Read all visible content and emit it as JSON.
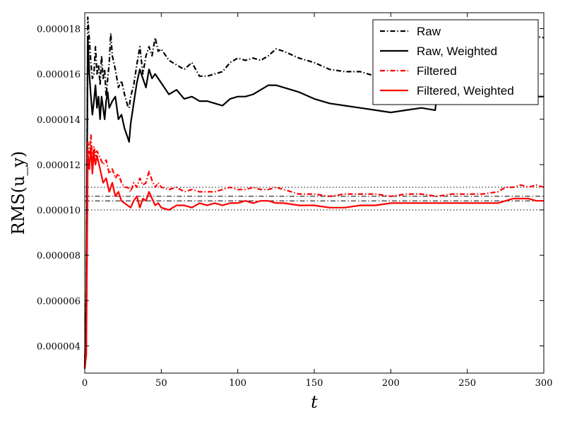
{
  "chart_data": {
    "type": "line",
    "title": "",
    "xlabel": "t",
    "ylabel": "RMS(u_y)",
    "xlim": [
      0,
      300
    ],
    "ylim": [
      1.87e-05,
      2.8e-06
    ],
    "y_axis_inverted": true,
    "grid": false,
    "legend_placement": "top-right",
    "x_ticks": [
      0,
      50,
      100,
      150,
      200,
      250,
      300
    ],
    "x_tick_labels": [
      "0",
      "50",
      "100",
      "150",
      "200",
      "250",
      "300"
    ],
    "y_ticks": [
      4e-06,
      6e-06,
      8e-06,
      1e-05,
      1.2e-05,
      1.4e-05,
      1.6e-05,
      1.8e-05
    ],
    "y_tick_labels": [
      "0.000004",
      "0.000006",
      "0.000008",
      "0.000010",
      "0.000012",
      "0.000014",
      "0.000016",
      "0.000018"
    ],
    "reference_lines": [
      {
        "y": 1e-05,
        "style": "dotted",
        "color": "#000000"
      },
      {
        "y": 1.04e-05,
        "style": "dashdot",
        "color": "#000000"
      },
      {
        "y": 1.06e-05,
        "style": "dashdot",
        "color": "#000000"
      },
      {
        "y": 1.1e-05,
        "style": "dotted",
        "color": "#000000"
      }
    ],
    "series": [
      {
        "name": "Raw",
        "color": "#000000",
        "style": "dashdot",
        "x": [
          0,
          1,
          2,
          3,
          4,
          5,
          6,
          7,
          8,
          9,
          10,
          11,
          12,
          13,
          14,
          15,
          16,
          17,
          18,
          20,
          22,
          24,
          26,
          28,
          29,
          30,
          32,
          34,
          36,
          38,
          40,
          42,
          44,
          46,
          48,
          50,
          55,
          60,
          65,
          70,
          75,
          80,
          85,
          90,
          95,
          100,
          105,
          110,
          115,
          120,
          125,
          130,
          140,
          150,
          160,
          170,
          180,
          190,
          200,
          210,
          220,
          229,
          230,
          232,
          240,
          250,
          260,
          270,
          280,
          290,
          300
        ],
        "y": [
          3e-06,
          6.5e-06,
          1.85e-05,
          1.75e-05,
          1.65e-05,
          1.58e-05,
          1.6e-05,
          1.72e-05,
          1.6e-05,
          1.64e-05,
          1.55e-05,
          1.68e-05,
          1.58e-05,
          1.62e-05,
          1.5e-05,
          1.58e-05,
          1.65e-05,
          1.78e-05,
          1.68e-05,
          1.62e-05,
          1.54e-05,
          1.57e-05,
          1.51e-05,
          1.46e-05,
          1.45e-05,
          1.5e-05,
          1.55e-05,
          1.64e-05,
          1.72e-05,
          1.6e-05,
          1.68e-05,
          1.72e-05,
          1.68e-05,
          1.76e-05,
          1.7e-05,
          1.71e-05,
          1.66e-05,
          1.64e-05,
          1.62e-05,
          1.65e-05,
          1.59e-05,
          1.59e-05,
          1.6e-05,
          1.61e-05,
          1.65e-05,
          1.67e-05,
          1.66e-05,
          1.67e-05,
          1.66e-05,
          1.68e-05,
          1.71e-05,
          1.7e-05,
          1.67e-05,
          1.65e-05,
          1.62e-05,
          1.61e-05,
          1.61e-05,
          1.59e-05,
          1.58e-05,
          1.59e-05,
          1.59e-05,
          1.59e-05,
          1.76e-05,
          1.77e-05,
          1.77e-05,
          1.76e-05,
          1.77e-05,
          1.76e-05,
          1.77e-05,
          1.77e-05,
          1.76e-05
        ]
      },
      {
        "name": "Raw, Weighted",
        "color": "#000000",
        "style": "solid",
        "x": [
          0,
          1,
          2,
          3,
          4,
          5,
          6,
          7,
          8,
          9,
          10,
          11,
          12,
          13,
          14,
          15,
          16,
          18,
          20,
          22,
          24,
          26,
          28,
          29,
          30,
          32,
          34,
          36,
          38,
          40,
          42,
          44,
          46,
          48,
          50,
          55,
          60,
          65,
          70,
          75,
          80,
          85,
          90,
          95,
          100,
          105,
          110,
          115,
          120,
          125,
          130,
          140,
          150,
          160,
          170,
          180,
          190,
          200,
          210,
          220,
          229,
          230,
          232,
          240,
          250,
          260,
          270,
          280,
          290,
          300
        ],
        "y": [
          3e-06,
          6e-06,
          1.76e-05,
          1.6e-05,
          1.5e-05,
          1.42e-05,
          1.48e-05,
          1.55e-05,
          1.45e-05,
          1.5e-05,
          1.4e-05,
          1.5e-05,
          1.45e-05,
          1.4e-05,
          1.48e-05,
          1.52e-05,
          1.45e-05,
          1.48e-05,
          1.5e-05,
          1.4e-05,
          1.42e-05,
          1.36e-05,
          1.32e-05,
          1.3e-05,
          1.38e-05,
          1.47e-05,
          1.56e-05,
          1.62e-05,
          1.58e-05,
          1.54e-05,
          1.62e-05,
          1.58e-05,
          1.6e-05,
          1.58e-05,
          1.56e-05,
          1.51e-05,
          1.53e-05,
          1.49e-05,
          1.5e-05,
          1.48e-05,
          1.48e-05,
          1.47e-05,
          1.46e-05,
          1.49e-05,
          1.5e-05,
          1.5e-05,
          1.51e-05,
          1.53e-05,
          1.55e-05,
          1.55e-05,
          1.54e-05,
          1.52e-05,
          1.49e-05,
          1.47e-05,
          1.46e-05,
          1.45e-05,
          1.44e-05,
          1.43e-05,
          1.44e-05,
          1.45e-05,
          1.44e-05,
          1.5e-05,
          1.5e-05,
          1.49e-05,
          1.49e-05,
          1.49e-05,
          1.5e-05,
          1.5e-05,
          1.5e-05,
          1.5e-05
        ]
      },
      {
        "name": "Filtered",
        "color": "#ff0000",
        "style": "dashdot",
        "x": [
          0,
          1,
          2,
          3,
          4,
          5,
          6,
          7,
          8,
          10,
          12,
          14,
          16,
          18,
          20,
          22,
          24,
          26,
          28,
          30,
          32,
          34,
          36,
          38,
          40,
          42,
          44,
          46,
          48,
          50,
          55,
          60,
          65,
          70,
          75,
          80,
          85,
          90,
          95,
          100,
          105,
          110,
          115,
          120,
          125,
          130,
          140,
          150,
          160,
          170,
          180,
          190,
          200,
          210,
          220,
          230,
          240,
          250,
          260,
          270,
          275,
          280,
          285,
          290,
          295,
          300
        ],
        "y": [
          3e-06,
          4.2e-06,
          1.3e-05,
          1.25e-05,
          1.33e-05,
          1.22e-05,
          1.28e-05,
          1.24e-05,
          1.26e-05,
          1.23e-05,
          1.2e-05,
          1.22e-05,
          1.16e-05,
          1.18e-05,
          1.14e-05,
          1.16e-05,
          1.12e-05,
          1.1e-05,
          1.1e-05,
          1.08e-05,
          1.12e-05,
          1.1e-05,
          1.14e-05,
          1.11e-05,
          1.12e-05,
          1.17e-05,
          1.13e-05,
          1.1e-05,
          1.12e-05,
          1.1e-05,
          1.09e-05,
          1.1e-05,
          1.08e-05,
          1.09e-05,
          1.08e-05,
          1.08e-05,
          1.08e-05,
          1.09e-05,
          1.1e-05,
          1.09e-05,
          1.09e-05,
          1.1e-05,
          1.09e-05,
          1.09e-05,
          1.1e-05,
          1.09e-05,
          1.07e-05,
          1.07e-05,
          1.06e-05,
          1.07e-05,
          1.07e-05,
          1.07e-05,
          1.06e-05,
          1.07e-05,
          1.07e-05,
          1.06e-05,
          1.07e-05,
          1.07e-05,
          1.07e-05,
          1.08e-05,
          1.1e-05,
          1.1e-05,
          1.11e-05,
          1.1e-05,
          1.11e-05,
          1.1e-05
        ]
      },
      {
        "name": "Filtered, Weighted",
        "color": "#ff0000",
        "style": "solid",
        "x": [
          0,
          1,
          2,
          3,
          4,
          5,
          6,
          7,
          8,
          10,
          12,
          14,
          16,
          18,
          20,
          22,
          24,
          26,
          28,
          30,
          32,
          34,
          36,
          38,
          40,
          42,
          44,
          46,
          48,
          50,
          55,
          60,
          65,
          70,
          75,
          80,
          85,
          90,
          95,
          100,
          105,
          110,
          115,
          120,
          125,
          130,
          140,
          150,
          160,
          170,
          180,
          190,
          200,
          210,
          220,
          230,
          240,
          250,
          260,
          270,
          275,
          280,
          285,
          290,
          295,
          300
        ],
        "y": [
          3e-06,
          3.6e-06,
          1.25e-05,
          1.18e-05,
          1.28e-05,
          1.16e-05,
          1.25e-05,
          1.2e-05,
          1.24e-05,
          1.18e-05,
          1.12e-05,
          1.14e-05,
          1.08e-05,
          1.12e-05,
          1.06e-05,
          1.08e-05,
          1.04e-05,
          1.03e-05,
          1.02e-05,
          1.01e-05,
          1.04e-05,
          1.06e-05,
          1.01e-05,
          1.05e-05,
          1.04e-05,
          1.08e-05,
          1.05e-05,
          1.02e-05,
          1.03e-05,
          1.01e-05,
          1e-05,
          1.02e-05,
          1.02e-05,
          1.01e-05,
          1.03e-05,
          1.02e-05,
          1.03e-05,
          1.02e-05,
          1.03e-05,
          1.03e-05,
          1.04e-05,
          1.03e-05,
          1.04e-05,
          1.04e-05,
          1.03e-05,
          1.03e-05,
          1.02e-05,
          1.02e-05,
          1.01e-05,
          1.01e-05,
          1.02e-05,
          1.02e-05,
          1.03e-05,
          1.03e-05,
          1.03e-05,
          1.03e-05,
          1.03e-05,
          1.03e-05,
          1.03e-05,
          1.03e-05,
          1.04e-05,
          1.05e-05,
          1.05e-05,
          1.05e-05,
          1.04e-05,
          1.04e-05
        ]
      }
    ]
  }
}
